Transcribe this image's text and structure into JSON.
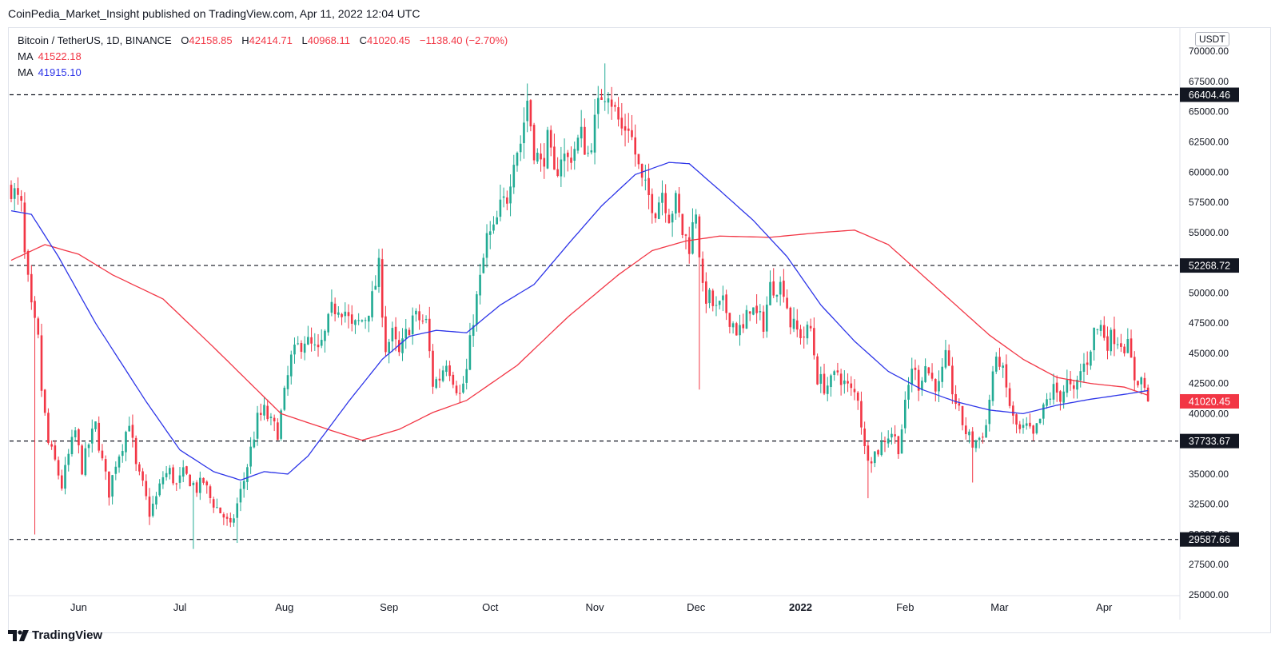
{
  "header": {
    "text": "CoinPedia_Market_Insight published on TradingView.com, Apr 11, 2022 12:04 UTC"
  },
  "legend": {
    "symbol": "Bitcoin / TetherUS, 1D, BINANCE",
    "o_label": "O",
    "o": "42158.85",
    "h_label": "H",
    "h": "42414.71",
    "l_label": "L",
    "l": "40968.11",
    "c_label": "C",
    "c": "41020.45",
    "change": "−1138.40 (−2.70%)",
    "ma1_label": "MA",
    "ma1_value": "41522.18",
    "ma2_label": "MA",
    "ma2_value": "41915.10"
  },
  "currency": "USDT",
  "footer": {
    "brand": "TradingView"
  },
  "colors": {
    "up": "#22ab94",
    "down": "#f23645",
    "ma_slow": "#f23645",
    "ma_fast": "#2d35e8",
    "grid": "#e0e3eb",
    "text": "#131722"
  },
  "chart_data": {
    "type": "candlestick",
    "title": "Bitcoin / TetherUS, 1D, BINANCE",
    "ylim": [
      25000,
      72000
    ],
    "y_ticks": [
      25000,
      27500,
      30000,
      32500,
      35000,
      37500,
      40000,
      42500,
      45000,
      47500,
      50000,
      52500,
      55000,
      57500,
      60000,
      62500,
      65000,
      67500,
      70000
    ],
    "y_tick_labels": [
      "25000.00",
      "27500.00",
      "30000.00",
      "32500.00",
      "35000.00",
      "37500.00",
      "40000.00",
      "42500.00",
      "45000.00",
      "47500.00",
      "50000.00",
      "52500.00",
      "55000.00",
      "57500.00",
      "60000.00",
      "62500.00",
      "65000.00",
      "67500.00",
      "70000.00"
    ],
    "x_axis": {
      "start_date": "2021-05-12",
      "end_date": "2022-04-11",
      "month_labels": [
        {
          "label": "Jun",
          "day": 20
        },
        {
          "label": "Jul",
          "day": 50
        },
        {
          "label": "Aug",
          "day": 81
        },
        {
          "label": "Sep",
          "day": 112
        },
        {
          "label": "Oct",
          "day": 142
        },
        {
          "label": "Nov",
          "day": 173
        },
        {
          "label": "Dec",
          "day": 203
        },
        {
          "label": "2022",
          "day": 234
        },
        {
          "label": "Feb",
          "day": 265
        },
        {
          "label": "Mar",
          "day": 293
        },
        {
          "label": "Apr",
          "day": 324
        }
      ]
    },
    "horizontal_lines": [
      {
        "value": 66404.46,
        "label": "66404.46"
      },
      {
        "value": 52268.72,
        "label": "52268.72"
      },
      {
        "value": 37733.67,
        "label": "37733.67"
      },
      {
        "value": 29587.66,
        "label": "29587.66"
      }
    ],
    "last_price": {
      "value": 41020.45,
      "label": "41020.45"
    },
    "anchors": [
      [
        0,
        58800
      ],
      [
        3,
        57000
      ],
      [
        4,
        53000
      ],
      [
        6,
        48500
      ],
      [
        8,
        46000
      ],
      [
        9,
        42000
      ],
      [
        11,
        37500
      ],
      [
        13,
        36000
      ],
      [
        15,
        34000
      ],
      [
        17,
        36500
      ],
      [
        19,
        38500
      ],
      [
        21,
        35500
      ],
      [
        23,
        37500
      ],
      [
        25,
        39000
      ],
      [
        27,
        36000
      ],
      [
        29,
        33500
      ],
      [
        31,
        36000
      ],
      [
        33,
        37500
      ],
      [
        35,
        39500
      ],
      [
        37,
        35500
      ],
      [
        39,
        34000
      ],
      [
        41,
        31800
      ],
      [
        43,
        33000
      ],
      [
        45,
        34800
      ],
      [
        47,
        35200
      ],
      [
        49,
        34000
      ],
      [
        51,
        35000
      ],
      [
        53,
        34500
      ],
      [
        55,
        33800
      ],
      [
        57,
        34400
      ],
      [
        59,
        33000
      ],
      [
        61,
        32200
      ],
      [
        63,
        31500
      ],
      [
        65,
        30500
      ],
      [
        67,
        32500
      ],
      [
        69,
        34500
      ],
      [
        71,
        37000
      ],
      [
        73,
        39500
      ],
      [
        75,
        40200
      ],
      [
        77,
        39200
      ],
      [
        79,
        38500
      ],
      [
        81,
        41500
      ],
      [
        83,
        44500
      ],
      [
        85,
        45500
      ],
      [
        87,
        46200
      ],
      [
        89,
        45500
      ],
      [
        91,
        45000
      ],
      [
        93,
        46500
      ],
      [
        95,
        48500
      ],
      [
        97,
        49000
      ],
      [
        99,
        48500
      ],
      [
        101,
        47000
      ],
      [
        103,
        47500
      ],
      [
        105,
        48000
      ],
      [
        107,
        49500
      ],
      [
        109,
        52000
      ],
      [
        111,
        45500
      ],
      [
        113,
        46500
      ],
      [
        115,
        44800
      ],
      [
        117,
        46500
      ],
      [
        119,
        48000
      ],
      [
        121,
        47800
      ],
      [
        123,
        47500
      ],
      [
        125,
        42500
      ],
      [
        127,
        43000
      ],
      [
        129,
        44500
      ],
      [
        131,
        43000
      ],
      [
        133,
        41500
      ],
      [
        135,
        43500
      ],
      [
        137,
        48000
      ],
      [
        139,
        51000
      ],
      [
        141,
        54500
      ],
      [
        143,
        55000
      ],
      [
        145,
        57000
      ],
      [
        147,
        58000
      ],
      [
        149,
        61500
      ],
      [
        151,
        62500
      ],
      [
        153,
        66000
      ],
      [
        155,
        62000
      ],
      [
        157,
        60500
      ],
      [
        159,
        62500
      ],
      [
        161,
        59500
      ],
      [
        163,
        61500
      ],
      [
        165,
        61000
      ],
      [
        167,
        62000
      ],
      [
        169,
        63000
      ],
      [
        171,
        61500
      ],
      [
        173,
        64000
      ],
      [
        175,
        66500
      ],
      [
        177,
        67000
      ],
      [
        179,
        65000
      ],
      [
        181,
        63500
      ],
      [
        183,
        64000
      ],
      [
        185,
        61500
      ],
      [
        187,
        59000
      ],
      [
        189,
        58000
      ],
      [
        191,
        57000
      ],
      [
        193,
        58500
      ],
      [
        195,
        56500
      ],
      [
        197,
        57500
      ],
      [
        199,
        55000
      ],
      [
        201,
        54000
      ],
      [
        203,
        57000
      ],
      [
        205,
        50000
      ],
      [
        207,
        49500
      ],
      [
        209,
        48500
      ],
      [
        211,
        49000
      ],
      [
        213,
        48000
      ],
      [
        215,
        47000
      ],
      [
        217,
        46800
      ],
      [
        219,
        49000
      ],
      [
        221,
        48000
      ],
      [
        223,
        47500
      ],
      [
        225,
        50500
      ],
      [
        227,
        50700
      ],
      [
        229,
        50500
      ],
      [
        231,
        47500
      ],
      [
        233,
        46800
      ],
      [
        235,
        46500
      ],
      [
        237,
        47000
      ],
      [
        239,
        43000
      ],
      [
        241,
        42300
      ],
      [
        243,
        42500
      ],
      [
        245,
        43500
      ],
      [
        247,
        42500
      ],
      [
        249,
        41800
      ],
      [
        251,
        41500
      ],
      [
        253,
        37000
      ],
      [
        255,
        36500
      ],
      [
        257,
        37000
      ],
      [
        259,
        38000
      ],
      [
        261,
        38500
      ],
      [
        263,
        37300
      ],
      [
        265,
        40500
      ],
      [
        267,
        44000
      ],
      [
        269,
        42500
      ],
      [
        271,
        44000
      ],
      [
        273,
        42800
      ],
      [
        275,
        42200
      ],
      [
        277,
        44500
      ],
      [
        279,
        42000
      ],
      [
        281,
        40000
      ],
      [
        283,
        38500
      ],
      [
        285,
        37500
      ],
      [
        287,
        38000
      ],
      [
        289,
        39000
      ],
      [
        291,
        43500
      ],
      [
        293,
        44500
      ],
      [
        295,
        42000
      ],
      [
        297,
        39500
      ],
      [
        299,
        38500
      ],
      [
        301,
        38800
      ],
      [
        303,
        38000
      ],
      [
        305,
        39500
      ],
      [
        307,
        41000
      ],
      [
        309,
        42000
      ],
      [
        311,
        41500
      ],
      [
        313,
        42500
      ],
      [
        315,
        41500
      ],
      [
        317,
        43500
      ],
      [
        319,
        44500
      ],
      [
        321,
        46800
      ],
      [
        323,
        47200
      ],
      [
        325,
        46000
      ],
      [
        327,
        46500
      ],
      [
        329,
        46000
      ],
      [
        331,
        45500
      ],
      [
        333,
        43000
      ],
      [
        335,
        42800
      ],
      [
        336,
        42200
      ],
      [
        337,
        41020
      ]
    ],
    "extremes": [
      {
        "day": 7,
        "low": 30000
      },
      {
        "day": 54,
        "low": 28800
      },
      {
        "day": 67,
        "low": 29300
      },
      {
        "day": 176,
        "high": 69000
      },
      {
        "day": 204,
        "low": 42000
      },
      {
        "day": 254,
        "low": 33000
      },
      {
        "day": 285,
        "low": 34300
      }
    ],
    "ma_fast_anchors": [
      [
        0,
        56800
      ],
      [
        6,
        56500
      ],
      [
        14,
        53000
      ],
      [
        25,
        47500
      ],
      [
        40,
        41000
      ],
      [
        50,
        37000
      ],
      [
        60,
        35200
      ],
      [
        68,
        34500
      ],
      [
        75,
        35200
      ],
      [
        82,
        35000
      ],
      [
        88,
        36500
      ],
      [
        100,
        41000
      ],
      [
        110,
        44500
      ],
      [
        118,
        46400
      ],
      [
        126,
        46900
      ],
      [
        135,
        46700
      ],
      [
        145,
        49000
      ],
      [
        155,
        50700
      ],
      [
        165,
        54000
      ],
      [
        175,
        57200
      ],
      [
        185,
        59800
      ],
      [
        195,
        60800
      ],
      [
        201,
        60700
      ],
      [
        210,
        58500
      ],
      [
        220,
        56000
      ],
      [
        230,
        53000
      ],
      [
        240,
        49000
      ],
      [
        250,
        46000
      ],
      [
        260,
        43500
      ],
      [
        270,
        42000
      ],
      [
        280,
        41000
      ],
      [
        290,
        40300
      ],
      [
        300,
        40000
      ],
      [
        310,
        40700
      ],
      [
        320,
        41200
      ],
      [
        330,
        41600
      ],
      [
        337,
        41915
      ]
    ],
    "ma_slow_anchors": [
      [
        0,
        52700
      ],
      [
        10,
        54000
      ],
      [
        20,
        53200
      ],
      [
        30,
        51500
      ],
      [
        45,
        49500
      ],
      [
        60,
        45500
      ],
      [
        80,
        40000
      ],
      [
        95,
        38600
      ],
      [
        104,
        37800
      ],
      [
        115,
        38700
      ],
      [
        125,
        40100
      ],
      [
        135,
        41100
      ],
      [
        150,
        44000
      ],
      [
        165,
        48000
      ],
      [
        180,
        51500
      ],
      [
        190,
        53500
      ],
      [
        200,
        54300
      ],
      [
        210,
        54700
      ],
      [
        225,
        54600
      ],
      [
        240,
        55000
      ],
      [
        250,
        55200
      ],
      [
        260,
        54000
      ],
      [
        270,
        51500
      ],
      [
        280,
        49000
      ],
      [
        290,
        46500
      ],
      [
        300,
        44500
      ],
      [
        310,
        43000
      ],
      [
        320,
        42500
      ],
      [
        330,
        42200
      ],
      [
        337,
        41522
      ]
    ]
  }
}
